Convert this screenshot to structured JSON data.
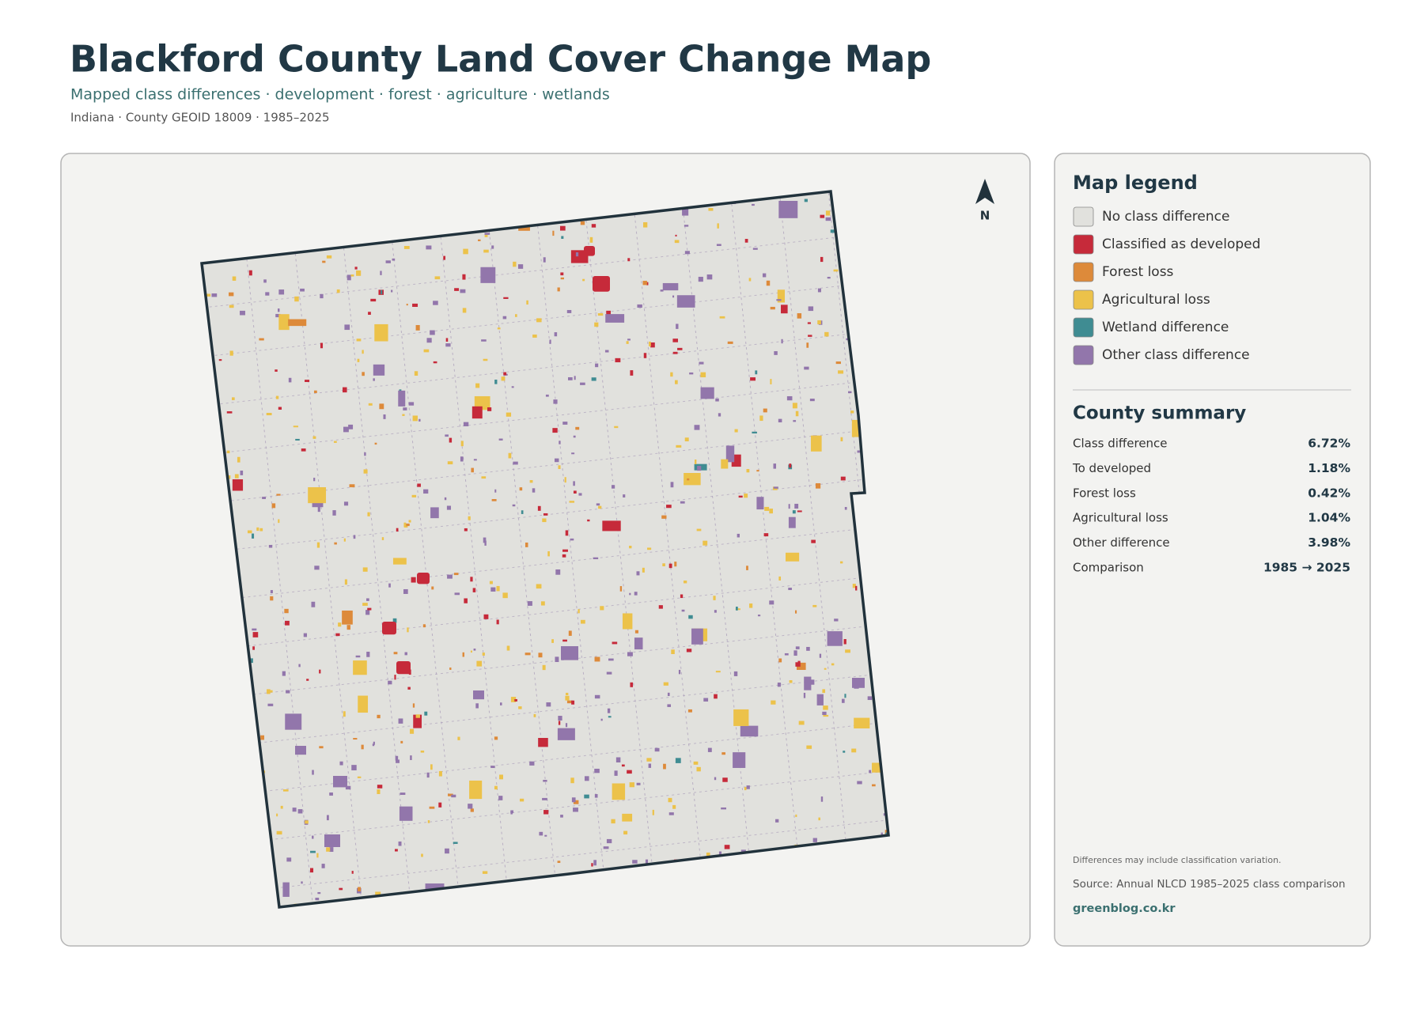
{
  "header": {
    "title": "Blackford County Land Cover Change Map",
    "subtitle": "Mapped class differences · development · forest · agriculture · wetlands",
    "meta": "Indiana · County GEOID 18009 · 1985–2025"
  },
  "map": {
    "north_label": "N"
  },
  "legend": {
    "title": "Map legend",
    "items": [
      {
        "label": "No class difference",
        "color": "#e1e1dd"
      },
      {
        "label": "Classified as developed",
        "color": "#c62a3a"
      },
      {
        "label": "Forest loss",
        "color": "#dd8a3a"
      },
      {
        "label": "Agricultural loss",
        "color": "#ecc24a"
      },
      {
        "label": "Wetland difference",
        "color": "#3f8c92"
      },
      {
        "label": "Other class difference",
        "color": "#9276ab"
      }
    ]
  },
  "summary": {
    "title": "County summary",
    "rows": [
      [
        "Class difference",
        "6.72%"
      ],
      [
        "To developed",
        "1.18%"
      ],
      [
        "Forest loss",
        "0.42%"
      ],
      [
        "Agricultural loss",
        "1.04%"
      ],
      [
        "Other difference",
        "3.98%"
      ],
      [
        "Comparison",
        "1985 → 2025"
      ]
    ]
  },
  "footer": {
    "note": "Differences may include classification variation.",
    "source": "Source: Annual NLCD 1985–2025 class comparison",
    "site": "greenblog.co.kr"
  }
}
